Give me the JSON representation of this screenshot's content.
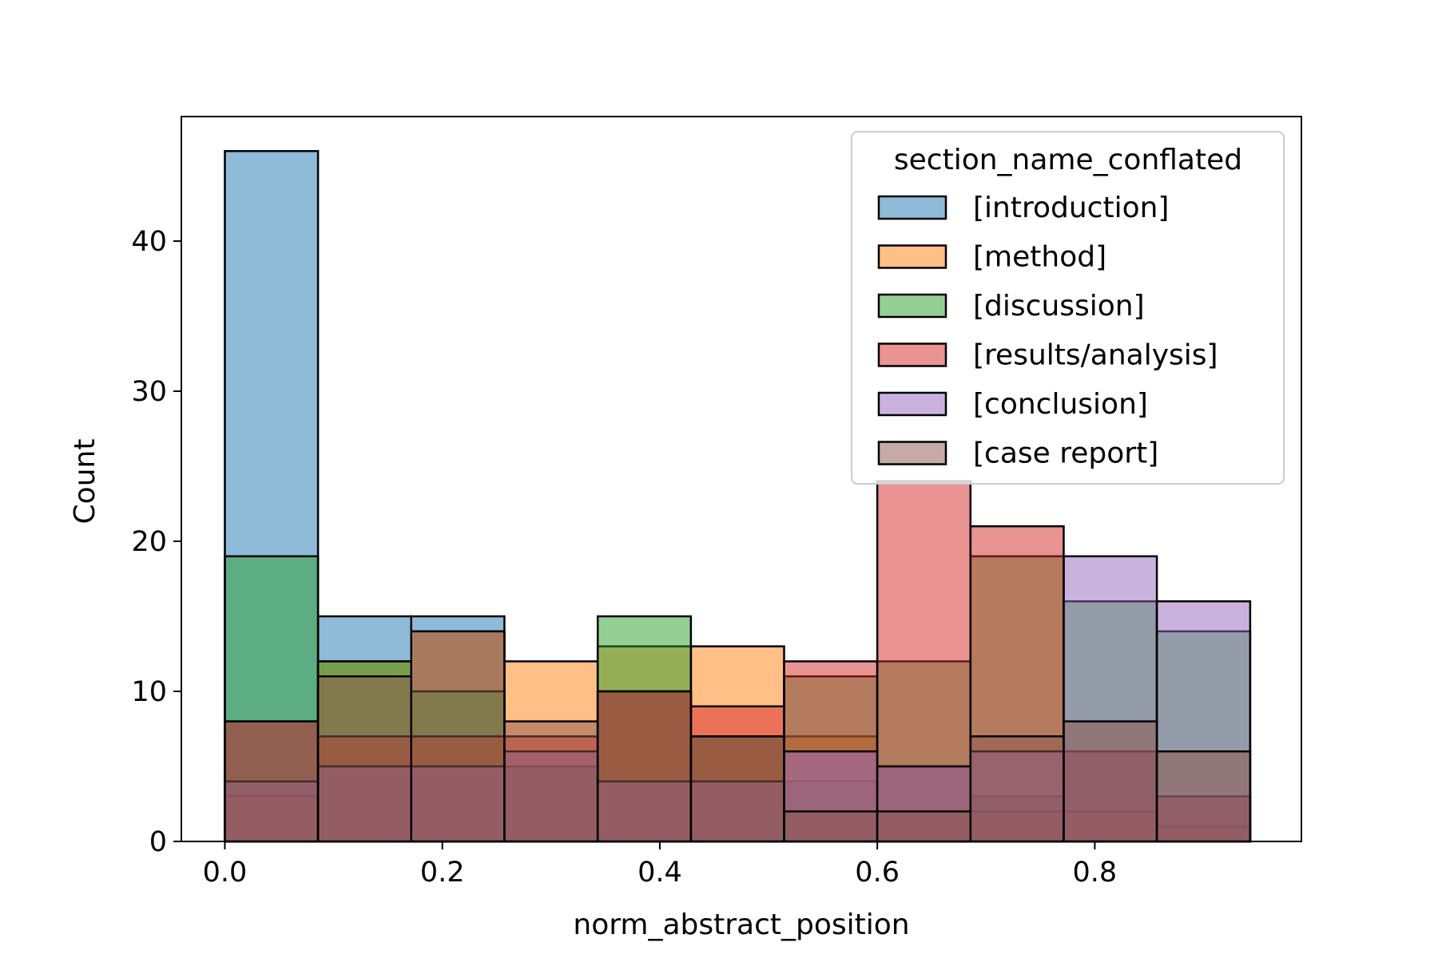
{
  "chart_data": {
    "type": "bar",
    "title": "",
    "xlabel": "norm_abstract_position",
    "ylabel": "Count",
    "xlim": [
      -0.04,
      0.99
    ],
    "ylim": [
      0,
      48.3
    ],
    "x_ticks": [
      "0.0",
      "0.2",
      "0.4",
      "0.6",
      "0.8"
    ],
    "x_tick_values": [
      0.0,
      0.2,
      0.4,
      0.6,
      0.8
    ],
    "y_ticks": [
      "0",
      "10",
      "20",
      "30",
      "40"
    ],
    "y_tick_values": [
      0,
      10,
      20,
      30,
      40
    ],
    "bin_edges": [
      0.0,
      0.0857,
      0.1714,
      0.2571,
      0.3429,
      0.4286,
      0.5143,
      0.6,
      0.6857,
      0.7714,
      0.8571,
      0.9429
    ],
    "grid": false,
    "legend": {
      "title": "section_name_conflated",
      "placement": "top-right"
    },
    "series": [
      {
        "name": "[introduction]",
        "color": "#1f77b4",
        "values": [
          46,
          15,
          15,
          5,
          10,
          7,
          4,
          5,
          3,
          6,
          3
        ]
      },
      {
        "name": "[method]",
        "color": "#ff7f0e",
        "values": [
          3,
          12,
          14,
          12,
          13,
          13,
          7,
          5,
          2,
          2,
          1
        ]
      },
      {
        "name": "[discussion]",
        "color": "#2ca02c",
        "values": [
          19,
          12,
          10,
          5,
          15,
          7,
          11,
          12,
          19,
          16,
          14
        ]
      },
      {
        "name": "[results/analysis]",
        "color": "#d62728",
        "values": [
          8,
          7,
          7,
          7,
          10,
          9,
          12,
          24,
          21,
          6,
          3
        ]
      },
      {
        "name": "[conclusion]",
        "color": "#9467bd",
        "values": [
          4,
          5,
          5,
          6,
          4,
          4,
          6,
          5,
          6,
          19,
          16
        ]
      },
      {
        "name": "[case report]",
        "color": "#8c564b",
        "values": [
          8,
          11,
          14,
          8,
          10,
          7,
          2,
          2,
          7,
          8,
          6
        ]
      }
    ]
  }
}
